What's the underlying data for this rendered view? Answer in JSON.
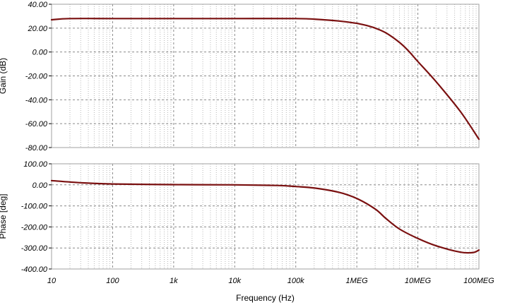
{
  "chart_data": [
    {
      "type": "line",
      "ylabel": "Gain (dB)",
      "xscale": "log",
      "xlim": [
        10,
        100000000
      ],
      "ylim": [
        -80,
        40
      ],
      "ytick_labels": [
        "40.00",
        "20.00",
        "0.00",
        "-20.00",
        "-40.00",
        "-60.00",
        "-80.00"
      ],
      "ytick_values": [
        40,
        20,
        0,
        -20,
        -40,
        -60,
        -80
      ],
      "grid": true,
      "color": "#7a1010",
      "series": [
        {
          "x": [
            10,
            20,
            100,
            1000,
            10000,
            100000,
            200000,
            500000,
            1000000,
            1500000,
            2000000,
            3000000,
            5000000,
            7000000,
            10000000,
            20000000,
            50000000,
            100000000
          ],
          "values": [
            27,
            28,
            28,
            28,
            28,
            28,
            27.5,
            26,
            24,
            22,
            20,
            16,
            8,
            1,
            -8,
            -25,
            -50,
            -73
          ]
        }
      ]
    },
    {
      "type": "line",
      "ylabel": "Phase [deg]",
      "xlabel": "Frequency (Hz)",
      "xscale": "log",
      "xlim": [
        10,
        100000000
      ],
      "ylim": [
        -400,
        100
      ],
      "ytick_labels": [
        "100.00",
        "0.00",
        "-100.00",
        "-200.00",
        "-300.00",
        "-400.00"
      ],
      "ytick_values": [
        100,
        0,
        -100,
        -200,
        -300,
        -400
      ],
      "xtick_labels": [
        "10",
        "100",
        "1k",
        "10k",
        "100k",
        "1MEG",
        "10MEG",
        "100MEG"
      ],
      "xtick_values": [
        10,
        100,
        1000,
        10000,
        100000,
        1000000,
        10000000,
        100000000
      ],
      "grid": true,
      "color": "#7a1010",
      "series": [
        {
          "x": [
            10,
            30,
            100,
            1000,
            10000,
            50000,
            100000,
            200000,
            500000,
            1000000,
            2000000,
            3000000,
            5000000,
            10000000,
            20000000,
            50000000,
            80000000,
            100000000
          ],
          "values": [
            20,
            10,
            4,
            1,
            0,
            -3,
            -8,
            -15,
            -35,
            -65,
            -115,
            -160,
            -210,
            -255,
            -290,
            -320,
            -322,
            -310
          ]
        }
      ]
    }
  ]
}
